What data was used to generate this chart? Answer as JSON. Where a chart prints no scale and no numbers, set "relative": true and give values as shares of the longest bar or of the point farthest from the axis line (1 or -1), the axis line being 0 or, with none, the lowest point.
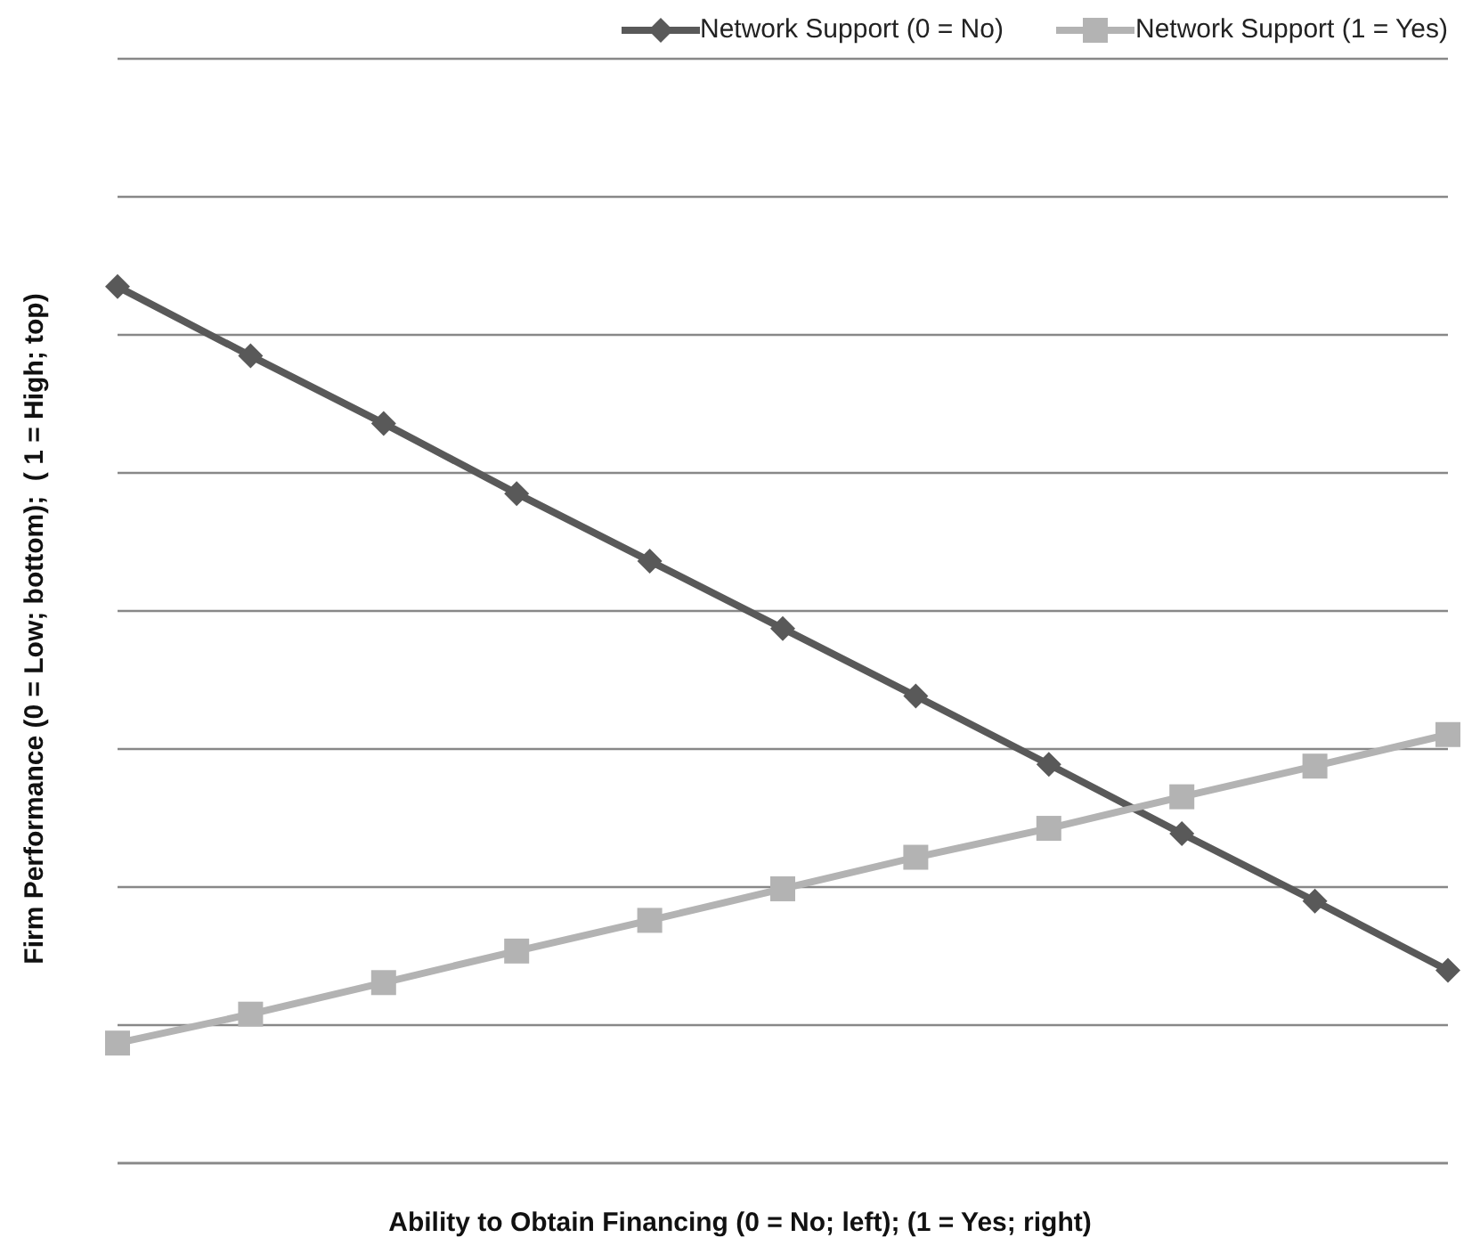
{
  "chart_data": {
    "type": "line",
    "relative": true,
    "xlabel": "Ability to Obtain Financing (0 = No; left); (1 = Yes; right)",
    "ylabel": "Firm Performance (0 = Low; bottom);  ( 1 = High; top)",
    "categories": [
      null,
      null,
      null,
      null,
      null,
      null,
      null,
      null,
      null,
      null,
      null
    ],
    "series": [
      {
        "name": "Network Support (0 = No)",
        "color": "#595959",
        "marker": "diamond",
        "values": [
          1,
          0.921,
          0.844,
          0.764,
          0.687,
          0.61,
          0.533,
          0.455,
          0.376,
          0.299,
          0.22
        ]
      },
      {
        "name": "Network Support (1 = Yes)",
        "color": "#b3b3b3",
        "marker": "square",
        "values": [
          0.137,
          0.17,
          0.206,
          0.242,
          0.277,
          0.313,
          0.349,
          0.382,
          0.418,
          0.453,
          0.489
        ]
      }
    ],
    "grid": "y",
    "legend": "top right",
    "line_style": "solid"
  }
}
